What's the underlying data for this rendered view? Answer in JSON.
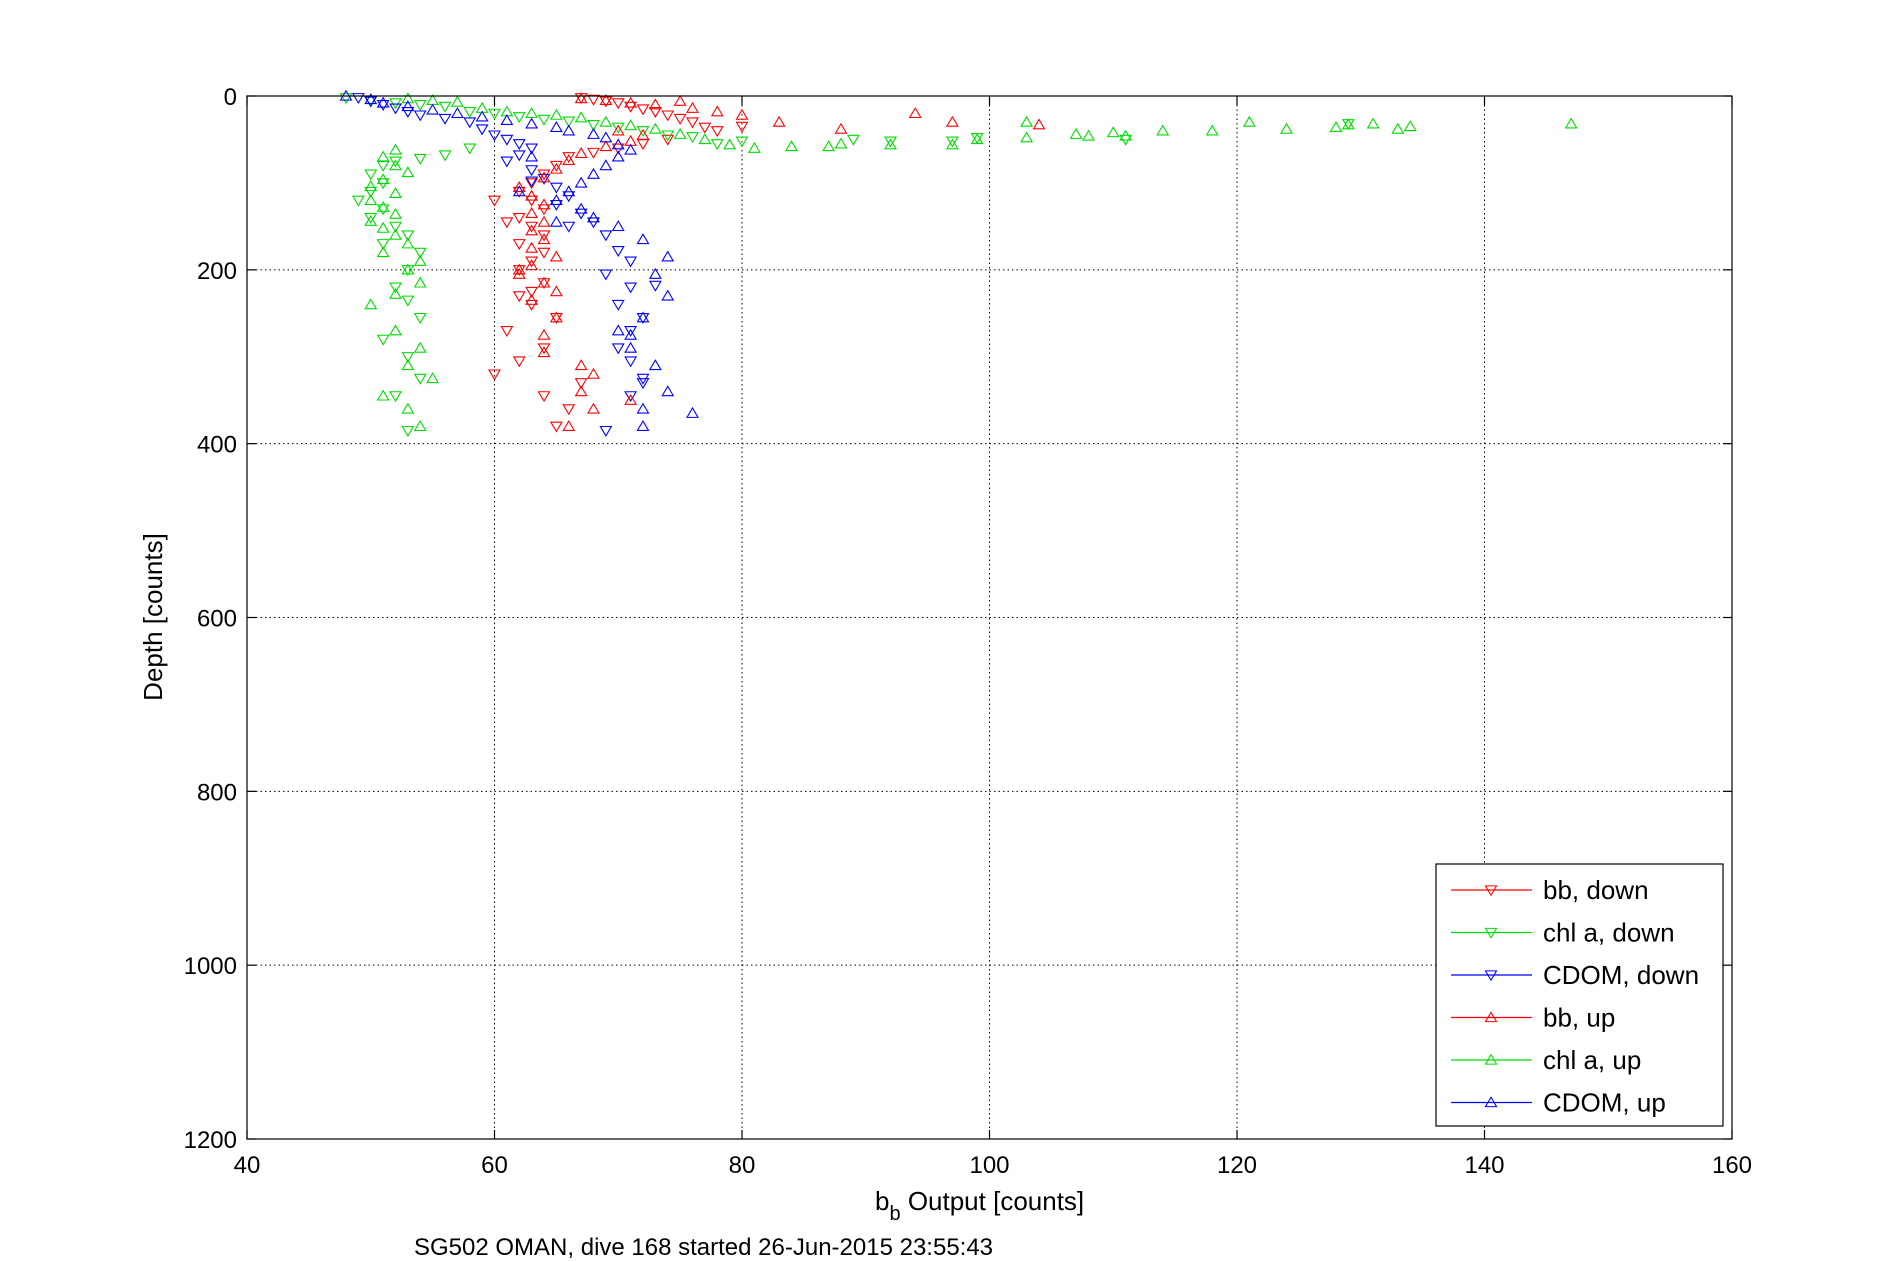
{
  "chart_data": {
    "type": "scatter",
    "title": "",
    "xlabel_main": "b",
    "xlabel_sub": "b",
    "xlabel_rest": " Output [counts]",
    "ylabel": "Depth [counts]",
    "caption": "SG502 OMAN, dive 168 started 26-Jun-2015 23:55:43",
    "xlim": [
      40,
      160
    ],
    "ylim": [
      0,
      1200
    ],
    "y_reversed": true,
    "xticks": [
      "40",
      "60",
      "80",
      "100",
      "120",
      "140",
      "160"
    ],
    "yticks": [
      "0",
      "200",
      "400",
      "600",
      "800",
      "1000",
      "1200"
    ],
    "grid": true,
    "legend_position": "bottom-right",
    "series": [
      {
        "name": "bb, down",
        "color": "#ff0000",
        "marker": "triangle-down",
        "points": [
          [
            67,
            2
          ],
          [
            68,
            4
          ],
          [
            69,
            6
          ],
          [
            70,
            8
          ],
          [
            71,
            12
          ],
          [
            72,
            15
          ],
          [
            73,
            18
          ],
          [
            74,
            22
          ],
          [
            75,
            26
          ],
          [
            76,
            30
          ],
          [
            77,
            36
          ],
          [
            78,
            40
          ],
          [
            80,
            35
          ],
          [
            74,
            50
          ],
          [
            72,
            55
          ],
          [
            70,
            60
          ],
          [
            68,
            65
          ],
          [
            66,
            70
          ],
          [
            65,
            80
          ],
          [
            64,
            90
          ],
          [
            63,
            100
          ],
          [
            62,
            110
          ],
          [
            63,
            120
          ],
          [
            64,
            130
          ],
          [
            62,
            140
          ],
          [
            63,
            150
          ],
          [
            64,
            160
          ],
          [
            62,
            170
          ],
          [
            64,
            180
          ],
          [
            63,
            190
          ],
          [
            62,
            200
          ],
          [
            64,
            215
          ],
          [
            62,
            230
          ],
          [
            63,
            240
          ],
          [
            65,
            255
          ],
          [
            61,
            270
          ],
          [
            64,
            290
          ],
          [
            62,
            305
          ],
          [
            60,
            320
          ],
          [
            67,
            330
          ],
          [
            64,
            345
          ],
          [
            66,
            360
          ],
          [
            65,
            380
          ],
          [
            60,
            120
          ],
          [
            61,
            145
          ],
          [
            63,
            225
          ]
        ]
      },
      {
        "name": "chl a, down",
        "color": "#00dd00",
        "marker": "triangle-down",
        "points": [
          [
            48,
            2
          ],
          [
            50,
            5
          ],
          [
            52,
            8
          ],
          [
            54,
            10
          ],
          [
            56,
            12
          ],
          [
            58,
            18
          ],
          [
            60,
            20
          ],
          [
            62,
            24
          ],
          [
            64,
            27
          ],
          [
            66,
            29
          ],
          [
            68,
            33
          ],
          [
            70,
            36
          ],
          [
            72,
            40
          ],
          [
            74,
            45
          ],
          [
            76,
            47
          ],
          [
            78,
            55
          ],
          [
            80,
            52
          ],
          [
            89,
            50
          ],
          [
            92,
            52
          ],
          [
            97,
            52
          ],
          [
            99,
            48
          ],
          [
            111,
            50
          ],
          [
            129,
            32
          ],
          [
            58,
            60
          ],
          [
            56,
            68
          ],
          [
            54,
            72
          ],
          [
            52,
            75
          ],
          [
            51,
            80
          ],
          [
            50,
            90
          ],
          [
            51,
            100
          ],
          [
            50,
            110
          ],
          [
            49,
            120
          ],
          [
            51,
            130
          ],
          [
            50,
            140
          ],
          [
            52,
            150
          ],
          [
            53,
            160
          ],
          [
            51,
            170
          ],
          [
            54,
            180
          ],
          [
            53,
            200
          ],
          [
            52,
            220
          ],
          [
            53,
            235
          ],
          [
            54,
            255
          ],
          [
            51,
            280
          ],
          [
            53,
            300
          ],
          [
            52,
            345
          ],
          [
            53,
            385
          ],
          [
            54,
            325
          ]
        ]
      },
      {
        "name": "CDOM, down",
        "color": "#0000ff",
        "marker": "triangle-down",
        "points": [
          [
            49,
            2
          ],
          [
            50,
            6
          ],
          [
            51,
            10
          ],
          [
            52,
            14
          ],
          [
            53,
            18
          ],
          [
            54,
            22
          ],
          [
            56,
            26
          ],
          [
            58,
            30
          ],
          [
            59,
            38
          ],
          [
            60,
            45
          ],
          [
            61,
            50
          ],
          [
            62,
            55
          ],
          [
            63,
            60
          ],
          [
            62,
            68
          ],
          [
            61,
            75
          ],
          [
            63,
            85
          ],
          [
            64,
            95
          ],
          [
            65,
            105
          ],
          [
            66,
            115
          ],
          [
            65,
            125
          ],
          [
            67,
            135
          ],
          [
            68,
            145
          ],
          [
            69,
            160
          ],
          [
            70,
            178
          ],
          [
            71,
            190
          ],
          [
            69,
            205
          ],
          [
            71,
            220
          ],
          [
            70,
            240
          ],
          [
            72,
            255
          ],
          [
            71,
            270
          ],
          [
            70,
            290
          ],
          [
            71,
            305
          ],
          [
            72,
            325
          ],
          [
            71,
            345
          ],
          [
            69,
            385
          ],
          [
            63,
            98
          ],
          [
            66,
            150
          ],
          [
            73,
            218
          ],
          [
            72,
            330
          ]
        ]
      },
      {
        "name": "bb, up",
        "color": "#ff0000",
        "marker": "triangle-up",
        "points": [
          [
            67,
            3
          ],
          [
            69,
            5
          ],
          [
            71,
            8
          ],
          [
            73,
            10
          ],
          [
            75,
            6
          ],
          [
            76,
            14
          ],
          [
            78,
            18
          ],
          [
            80,
            22
          ],
          [
            83,
            30
          ],
          [
            88,
            38
          ],
          [
            94,
            20
          ],
          [
            97,
            30
          ],
          [
            104,
            33
          ],
          [
            70,
            40
          ],
          [
            72,
            45
          ],
          [
            71,
            52
          ],
          [
            69,
            58
          ],
          [
            67,
            66
          ],
          [
            66,
            74
          ],
          [
            65,
            84
          ],
          [
            64,
            94
          ],
          [
            62,
            105
          ],
          [
            63,
            115
          ],
          [
            64,
            125
          ],
          [
            63,
            135
          ],
          [
            64,
            145
          ],
          [
            63,
            155
          ],
          [
            64,
            165
          ],
          [
            63,
            175
          ],
          [
            65,
            185
          ],
          [
            63,
            195
          ],
          [
            62,
            205
          ],
          [
            64,
            215
          ],
          [
            65,
            225
          ],
          [
            63,
            235
          ],
          [
            65,
            255
          ],
          [
            64,
            275
          ],
          [
            64,
            295
          ],
          [
            67,
            310
          ],
          [
            68,
            320
          ],
          [
            66,
            380
          ],
          [
            68,
            360
          ],
          [
            71,
            350
          ],
          [
            67,
            340
          ],
          [
            62,
            200
          ]
        ]
      },
      {
        "name": "chl a, up",
        "color": "#00dd00",
        "marker": "triangle-up",
        "points": [
          [
            53,
            3
          ],
          [
            55,
            5
          ],
          [
            57,
            7
          ],
          [
            59,
            14
          ],
          [
            61,
            18
          ],
          [
            63,
            20
          ],
          [
            65,
            22
          ],
          [
            67,
            25
          ],
          [
            69,
            30
          ],
          [
            71,
            34
          ],
          [
            73,
            38
          ],
          [
            75,
            44
          ],
          [
            77,
            50
          ],
          [
            79,
            56
          ],
          [
            81,
            60
          ],
          [
            84,
            58
          ],
          [
            87,
            58
          ],
          [
            88,
            55
          ],
          [
            92,
            56
          ],
          [
            97,
            56
          ],
          [
            99,
            50
          ],
          [
            103,
            30
          ],
          [
            103,
            48
          ],
          [
            107,
            44
          ],
          [
            108,
            46
          ],
          [
            110,
            42
          ],
          [
            111,
            46
          ],
          [
            114,
            40
          ],
          [
            118,
            40
          ],
          [
            121,
            30
          ],
          [
            124,
            38
          ],
          [
            128,
            36
          ],
          [
            129,
            33
          ],
          [
            131,
            32
          ],
          [
            133,
            38
          ],
          [
            134,
            35
          ],
          [
            147,
            32
          ],
          [
            52,
            62
          ],
          [
            51,
            70
          ],
          [
            52,
            80
          ],
          [
            53,
            88
          ],
          [
            51,
            96
          ],
          [
            50,
            104
          ],
          [
            52,
            112
          ],
          [
            50,
            120
          ],
          [
            51,
            128
          ],
          [
            52,
            136
          ],
          [
            50,
            144
          ],
          [
            51,
            152
          ],
          [
            52,
            160
          ],
          [
            53,
            170
          ],
          [
            51,
            180
          ],
          [
            54,
            190
          ],
          [
            53,
            200
          ],
          [
            54,
            215
          ],
          [
            52,
            228
          ],
          [
            50,
            240
          ],
          [
            52,
            270
          ],
          [
            54,
            290
          ],
          [
            53,
            310
          ],
          [
            55,
            325
          ],
          [
            51,
            345
          ],
          [
            53,
            360
          ],
          [
            54,
            380
          ]
        ]
      },
      {
        "name": "CDOM, up",
        "color": "#0000ff",
        "marker": "triangle-up",
        "points": [
          [
            48,
            0
          ],
          [
            50,
            4
          ],
          [
            51,
            8
          ],
          [
            53,
            12
          ],
          [
            55,
            16
          ],
          [
            57,
            20
          ],
          [
            59,
            24
          ],
          [
            61,
            28
          ],
          [
            63,
            32
          ],
          [
            65,
            36
          ],
          [
            66,
            40
          ],
          [
            68,
            44
          ],
          [
            69,
            48
          ],
          [
            70,
            56
          ],
          [
            71,
            62
          ],
          [
            70,
            70
          ],
          [
            69,
            80
          ],
          [
            68,
            90
          ],
          [
            67,
            100
          ],
          [
            66,
            110
          ],
          [
            65,
            120
          ],
          [
            67,
            130
          ],
          [
            68,
            140
          ],
          [
            70,
            150
          ],
          [
            72,
            165
          ],
          [
            74,
            185
          ],
          [
            73,
            205
          ],
          [
            74,
            230
          ],
          [
            72,
            255
          ],
          [
            70,
            270
          ],
          [
            71,
            290
          ],
          [
            73,
            310
          ],
          [
            74,
            340
          ],
          [
            72,
            360
          ],
          [
            76,
            365
          ],
          [
            72,
            380
          ],
          [
            63,
            70
          ],
          [
            62,
            110
          ],
          [
            65,
            145
          ],
          [
            71,
            275
          ]
        ]
      }
    ]
  }
}
